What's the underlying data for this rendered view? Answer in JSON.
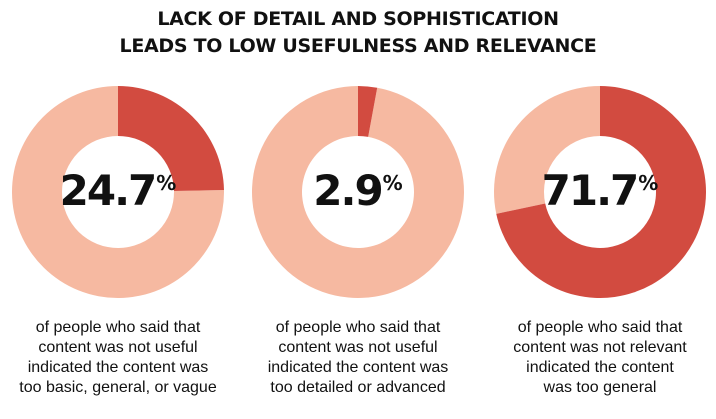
{
  "title": {
    "line1": "LACK OF DETAIL AND SOPHISTICATION",
    "line2": "LEADS TO LOW USEFULNESS AND RELEVANCE"
  },
  "colors": {
    "highlight": "#D24B40",
    "remainder": "#F6B9A1",
    "text": "#111111"
  },
  "chart_data": [
    {
      "type": "pie",
      "donut": true,
      "value": 24.7,
      "remainder": 75.3,
      "label_number": "24.7",
      "label_sign": "%",
      "caption_lines": [
        "of people who said that",
        "content was not useful",
        "indicated the content was",
        "too basic, general, or vague"
      ]
    },
    {
      "type": "pie",
      "donut": true,
      "value": 2.9,
      "remainder": 97.1,
      "label_number": "2.9",
      "label_sign": "%",
      "caption_lines": [
        "of people who said that",
        "content was not useful",
        "indicated the content was",
        "too detailed or advanced"
      ]
    },
    {
      "type": "pie",
      "donut": true,
      "value": 71.7,
      "remainder": 28.3,
      "label_number": "71.7",
      "label_sign": "%",
      "caption_lines": [
        "of people who said that",
        "content was not relevant",
        "indicated the content",
        "was too general"
      ]
    }
  ]
}
